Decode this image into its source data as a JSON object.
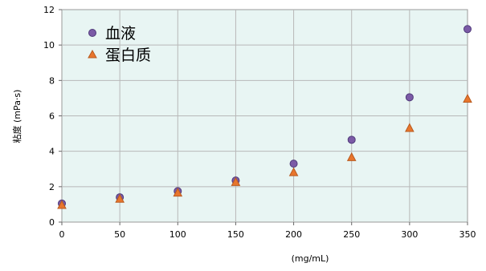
{
  "chart_data": {
    "type": "scatter",
    "title": "",
    "xlabel": "(mg/mL)",
    "ylabel": "粘度 (mPa·s)",
    "xlim": [
      0,
      350
    ],
    "ylim": [
      0,
      12
    ],
    "x_ticks": [
      0,
      50,
      100,
      150,
      200,
      250,
      300,
      350
    ],
    "y_ticks": [
      0,
      2,
      4,
      6,
      8,
      10,
      12
    ],
    "grid": true,
    "legend_position": "top-left",
    "plot_background": "#e8f5f3",
    "series": [
      {
        "name": "血液",
        "marker": "circle",
        "color": "#7b5aa6",
        "stroke": "#4f3a7a",
        "x": [
          0,
          50,
          100,
          150,
          200,
          250,
          300,
          350
        ],
        "y": [
          1.05,
          1.4,
          1.75,
          2.35,
          3.3,
          4.65,
          7.05,
          10.9
        ]
      },
      {
        "name": "蛋白质",
        "marker": "triangle",
        "color": "#e8762d",
        "stroke": "#b85a1f",
        "x": [
          0,
          50,
          100,
          150,
          200,
          250,
          300,
          350
        ],
        "y": [
          0.95,
          1.3,
          1.65,
          2.25,
          2.8,
          3.65,
          5.3,
          6.95
        ]
      }
    ]
  }
}
